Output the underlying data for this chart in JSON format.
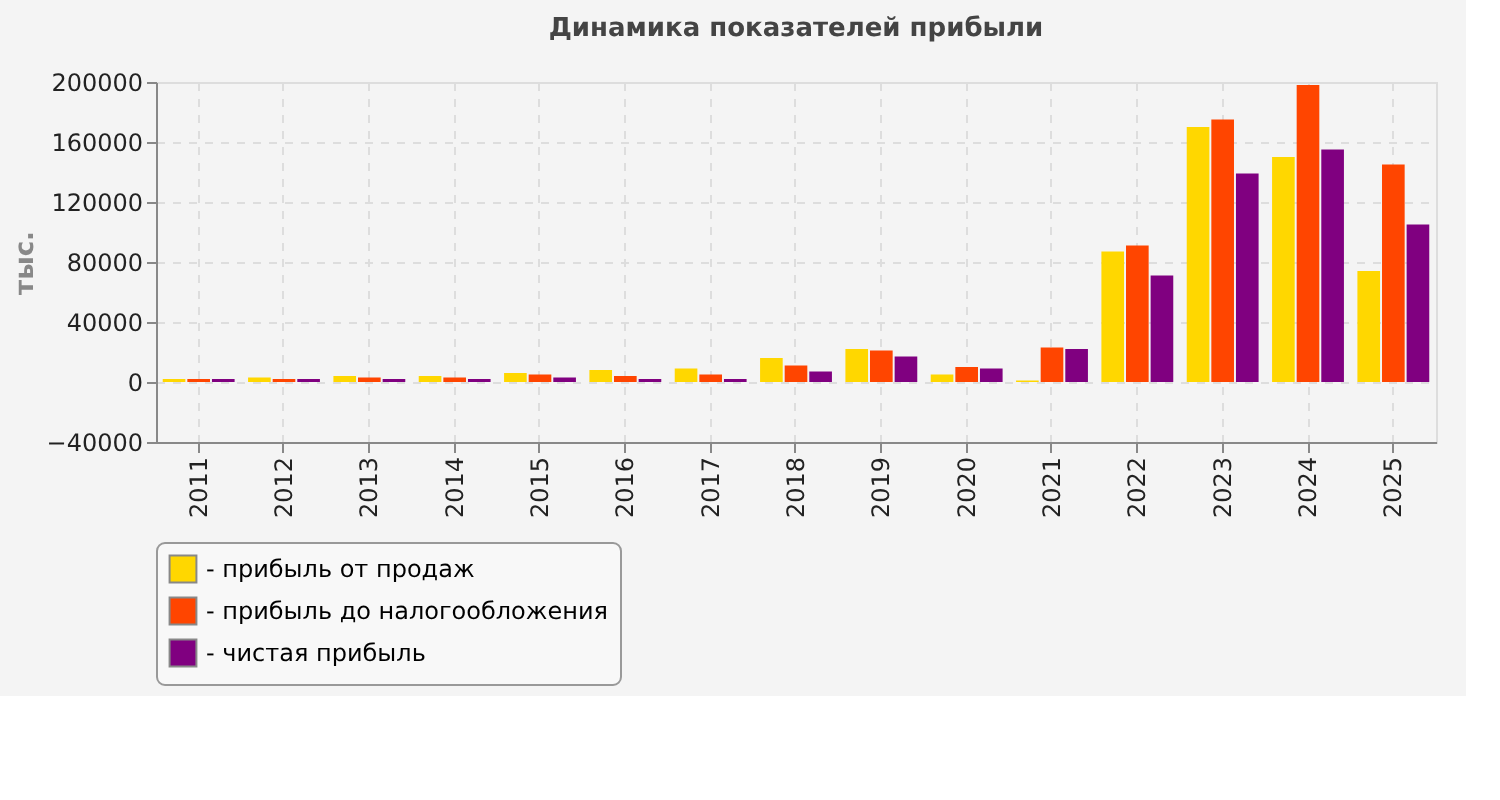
{
  "chart_data": {
    "type": "bar",
    "title": "Динамика показателей прибыли",
    "ylabel": "тыс.",
    "categories": [
      "2011",
      "2012",
      "2013",
      "2014",
      "2015",
      "2016",
      "2017",
      "2018",
      "2019",
      "2020",
      "2021",
      "2022",
      "2023",
      "2024",
      "2025"
    ],
    "series": [
      {
        "name": "- прибыль от продаж",
        "color": "#ffd700",
        "values": [
          2000,
          3000,
          4000,
          4000,
          6000,
          8000,
          9000,
          16000,
          22000,
          5000,
          1000,
          87000,
          170000,
          150000,
          74000
        ]
      },
      {
        "name": "- прибыль до налогообложения",
        "color": "#ff4500",
        "values": [
          2000,
          2000,
          3000,
          3000,
          5000,
          4000,
          5000,
          11000,
          21000,
          10000,
          23000,
          91000,
          175000,
          198000,
          145000
        ]
      },
      {
        "name": "- чистая прибыль",
        "color": "#800080",
        "values": [
          2000,
          2000,
          2000,
          2000,
          3000,
          2000,
          2000,
          7000,
          17000,
          9000,
          22000,
          71000,
          139000,
          155000,
          105000
        ]
      }
    ],
    "ylim": [
      -40000,
      200000
    ],
    "yticks": [
      -40000,
      0,
      40000,
      80000,
      120000,
      160000,
      200000
    ],
    "grid": true,
    "legend": "bottom"
  }
}
